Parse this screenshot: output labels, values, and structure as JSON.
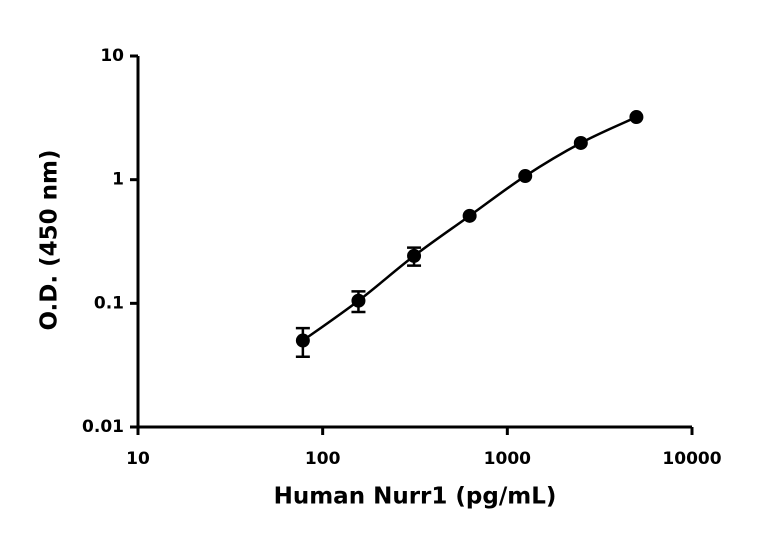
{
  "chart_data": {
    "type": "scatter",
    "xlabel": "Human Nurr1 (pg/mL)",
    "ylabel": "O.D. (450 nm)",
    "x": [
      78.125,
      156.25,
      312.5,
      625,
      1250,
      2500,
      5000
    ],
    "values": [
      0.05,
      0.105,
      0.242,
      0.51,
      1.07,
      1.98,
      3.21
    ],
    "errors": [
      0.013,
      0.02,
      0.04,
      null,
      null,
      null,
      null
    ],
    "color": "#000000",
    "xlog": true,
    "ylog": true,
    "xlim": [
      10,
      10000
    ],
    "ylim": [
      0.01,
      10
    ],
    "xticks": [
      10,
      100,
      1000,
      10000
    ],
    "yticks": [
      0.01,
      0.1,
      1,
      10
    ],
    "fit_curve": true
  }
}
